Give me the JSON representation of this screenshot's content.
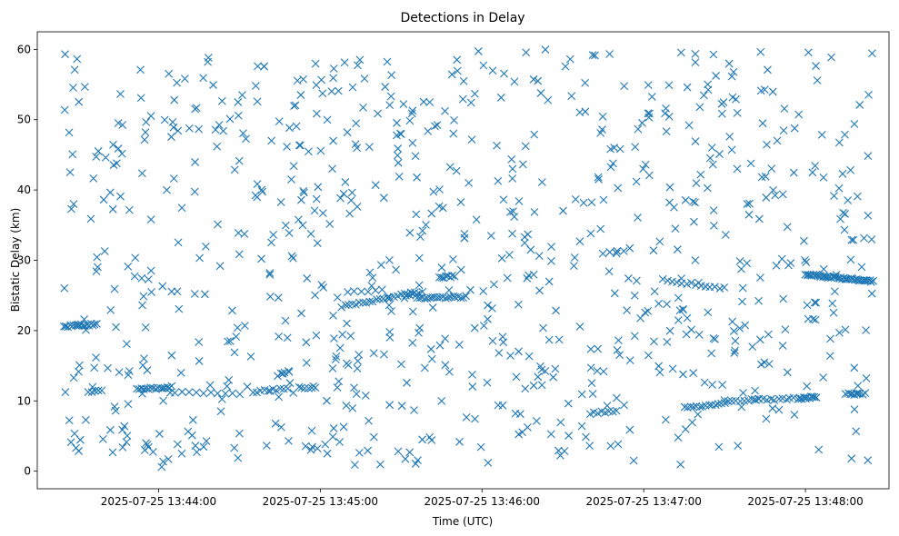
{
  "chart_data": {
    "type": "scatter",
    "title": "Detections in Delay",
    "xlabel": "Time (UTC)",
    "ylabel": "Bistatic Delay (km)",
    "x_start": "2025-07-25 13:43:25",
    "x_end": "2025-07-25 13:48:25",
    "xlim": [
      "2025-07-25 13:43:15",
      "2025-07-25 13:48:31"
    ],
    "ylim": [
      -2.5,
      62.5
    ],
    "x_ticks": [
      "2025-07-25 13:44:00",
      "2025-07-25 13:45:00",
      "2025-07-25 13:46:00",
      "2025-07-25 13:47:00",
      "2025-07-25 13:48:00"
    ],
    "y_ticks": [
      0,
      10,
      20,
      30,
      40,
      50,
      60
    ],
    "marker": "x",
    "color": "#1f77b4",
    "grid": false,
    "legend": "none",
    "random_detections": {
      "count": 820,
      "y_range": [
        0.5,
        60
      ]
    },
    "tracks": [
      {
        "start": "2025-07-25 13:43:25",
        "end": "2025-07-25 13:43:37",
        "y_start": 20.6,
        "y_end": 20.9,
        "count": 18
      },
      {
        "start": "2025-07-25 13:43:34",
        "end": "2025-07-25 13:43:39",
        "y_start": 11.2,
        "y_end": 11.6,
        "count": 5
      },
      {
        "start": "2025-07-25 13:43:52",
        "end": "2025-07-25 13:44:05",
        "y_start": 11.6,
        "y_end": 12.0,
        "count": 16
      },
      {
        "start": "2025-07-25 13:44:06",
        "end": "2025-07-25 13:44:30",
        "y_start": 11.2,
        "y_end": 11.0,
        "count": 10
      },
      {
        "start": "2025-07-25 13:44:35",
        "end": "2025-07-25 13:44:48",
        "y_start": 11.3,
        "y_end": 11.8,
        "count": 10
      },
      {
        "start": "2025-07-25 13:44:52",
        "end": "2025-07-25 13:44:58",
        "y_start": 11.9,
        "y_end": 11.9,
        "count": 6
      },
      {
        "start": "2025-07-25 13:44:44",
        "end": "2025-07-25 13:44:48",
        "y_start": 13.6,
        "y_end": 14.4,
        "count": 4
      },
      {
        "start": "2025-07-25 13:45:08",
        "end": "2025-07-25 13:45:35",
        "y_start": 23.4,
        "y_end": 25.4,
        "count": 22
      },
      {
        "start": "2025-07-25 13:45:10",
        "end": "2025-07-25 13:45:23",
        "y_start": 25.4,
        "y_end": 25.8,
        "count": 6
      },
      {
        "start": "2025-07-25 13:45:32",
        "end": "2025-07-25 13:45:38",
        "y_start": 25.0,
        "y_end": 25.4,
        "count": 6
      },
      {
        "start": "2025-07-25 13:45:36",
        "end": "2025-07-25 13:45:54",
        "y_start": 24.6,
        "y_end": 24.8,
        "count": 20
      },
      {
        "start": "2025-07-25 13:45:44",
        "end": "2025-07-25 13:45:50",
        "y_start": 27.6,
        "y_end": 27.7,
        "count": 8
      },
      {
        "start": "2025-07-25 13:46:40",
        "end": "2025-07-25 13:46:50",
        "y_start": 8.2,
        "y_end": 8.6,
        "count": 8
      },
      {
        "start": "2025-07-25 13:46:45",
        "end": "2025-07-25 13:46:55",
        "y_start": 31.0,
        "y_end": 31.6,
        "count": 5
      },
      {
        "start": "2025-07-25 13:47:07",
        "end": "2025-07-25 13:47:30",
        "y_start": 27.2,
        "y_end": 26.0,
        "count": 14
      },
      {
        "start": "2025-07-25 13:47:15",
        "end": "2025-07-25 13:47:30",
        "y_start": 9.0,
        "y_end": 9.6,
        "count": 14
      },
      {
        "start": "2025-07-25 13:47:30",
        "end": "2025-07-25 13:48:00",
        "y_start": 10.0,
        "y_end": 10.4,
        "count": 22
      },
      {
        "start": "2025-07-25 13:47:58",
        "end": "2025-07-25 13:48:04",
        "y_start": 10.3,
        "y_end": 10.6,
        "count": 10
      },
      {
        "start": "2025-07-25 13:48:00",
        "end": "2025-07-25 13:48:25",
        "y_start": 28.0,
        "y_end": 27.0,
        "count": 45
      },
      {
        "start": "2025-07-25 13:48:15",
        "end": "2025-07-25 13:48:22",
        "y_start": 11.0,
        "y_end": 11.0,
        "count": 10
      }
    ]
  }
}
